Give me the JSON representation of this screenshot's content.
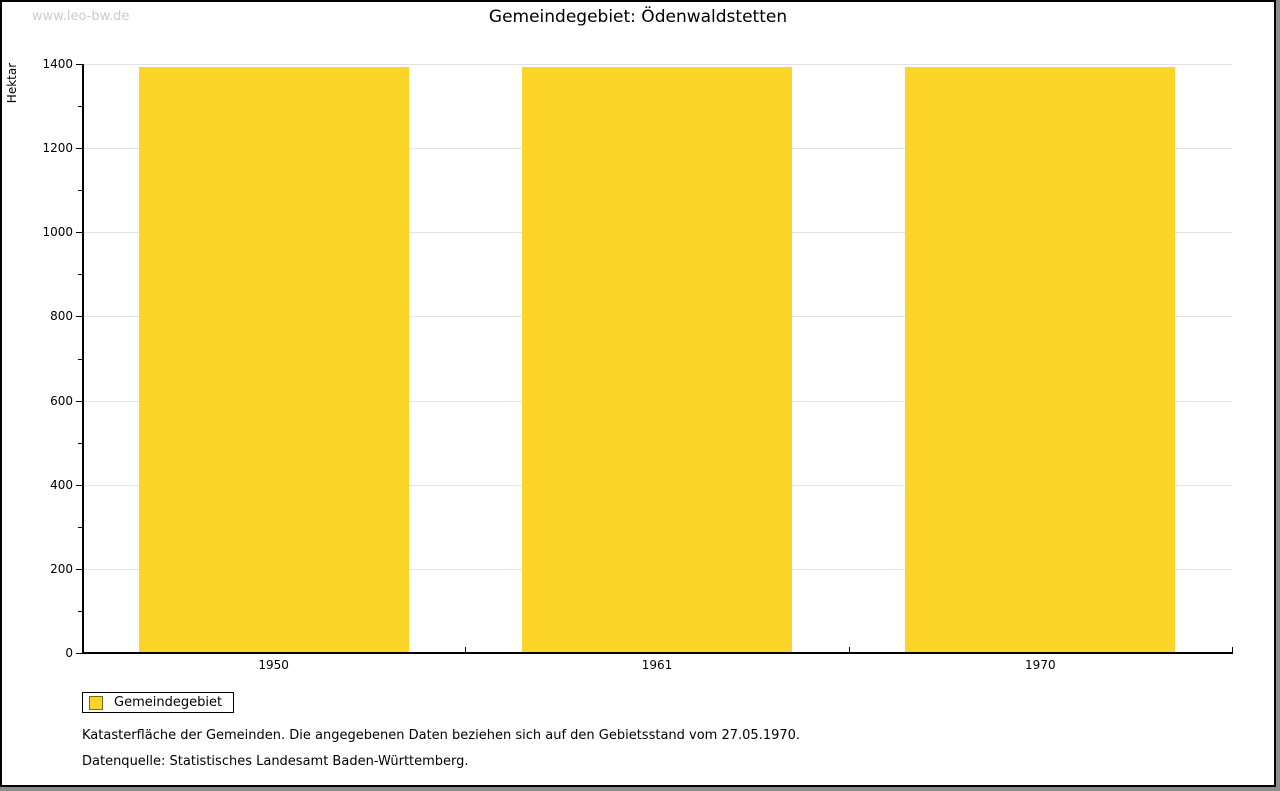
{
  "watermark": "www.leo-bw.de",
  "title": "Gemeindegebiet: Ödenwaldstetten",
  "chart_data": {
    "type": "bar",
    "title": "Gemeindegebiet: Ödenwaldstetten",
    "categories": [
      "1950",
      "1961",
      "1970"
    ],
    "series": [
      {
        "name": "Gemeindegebiet",
        "values": [
          1394,
          1394,
          1394
        ],
        "color": "#fdd528"
      }
    ],
    "xlabel": "",
    "ylabel": "Hektar",
    "ylim": [
      0,
      1400
    ],
    "ytick_step": 200,
    "minor_tick_step": 100,
    "grid": true,
    "legend_position": "bottom-left"
  },
  "legend": {
    "label": "Gemeindegebiet",
    "swatch_color": "#fdd528"
  },
  "footer": {
    "line1": "Katasterfläche der Gemeinden. Die angegebenen Daten beziehen sich auf den Gebietsstand vom 27.05.1970.",
    "line2": "Datenquelle: Statistisches Landesamt Baden-Württemberg."
  },
  "colors": {
    "bar": "#fdd528",
    "grid": "#e3e3e3",
    "axis": "#000000",
    "watermark": "#cbcbcb",
    "frame_shadow": "#8c8c8c"
  }
}
